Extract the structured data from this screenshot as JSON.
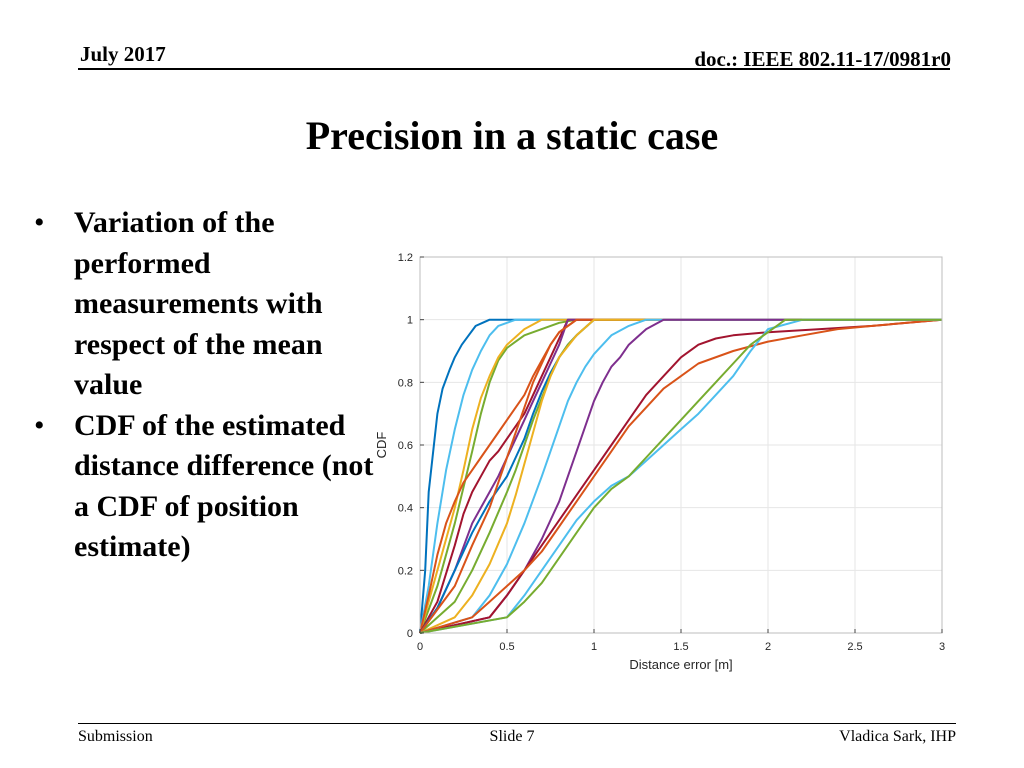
{
  "header": {
    "date": "July 2017",
    "doc": "doc.: IEEE 802.11-17/0981r0"
  },
  "title": "Precision in a static case",
  "bullets": [
    "Variation of the performed measurements with respect of the mean value",
    "CDF of the estimated distance difference (not a CDF of position estimate)"
  ],
  "footer": {
    "left": "Submission",
    "center": "Slide 7",
    "right": "Vladica Sark, IHP"
  },
  "chart_data": {
    "type": "line",
    "title": "",
    "xlabel": "Distance error [m]",
    "ylabel": "CDF",
    "xlim": [
      0,
      3
    ],
    "ylim": [
      0,
      1.2
    ],
    "xticks": [
      0,
      0.5,
      1,
      1.5,
      2,
      2.5,
      3
    ],
    "xtick_labels": [
      "0",
      "0.5",
      "1",
      "1.5",
      "2",
      "2.5",
      "3"
    ],
    "yticks": [
      0,
      0.2,
      0.4,
      0.6,
      0.8,
      1,
      1.2
    ],
    "ytick_labels": [
      "0",
      "0.2",
      "0.4",
      "0.6",
      "0.8",
      "1",
      "1.2"
    ],
    "grid": true,
    "series": [
      {
        "color": "#0072BD",
        "x": [
          0,
          0.03,
          0.05,
          0.08,
          0.1,
          0.13,
          0.17,
          0.2,
          0.24,
          0.28,
          0.32,
          0.36,
          0.4,
          0.45,
          0.5,
          3
        ],
        "y": [
          0,
          0.2,
          0.45,
          0.6,
          0.7,
          0.78,
          0.84,
          0.88,
          0.92,
          0.95,
          0.98,
          0.99,
          1.0,
          1.0,
          1.0,
          1.0
        ]
      },
      {
        "color": "#4DBEEE",
        "x": [
          0,
          0.05,
          0.1,
          0.15,
          0.2,
          0.25,
          0.3,
          0.35,
          0.4,
          0.45,
          0.5,
          0.55,
          3
        ],
        "y": [
          0,
          0.15,
          0.35,
          0.52,
          0.65,
          0.76,
          0.84,
          0.9,
          0.95,
          0.98,
          0.99,
          1.0,
          1.0
        ]
      },
      {
        "color": "#77AC30",
        "x": [
          0,
          0.1,
          0.2,
          0.3,
          0.35,
          0.4,
          0.45,
          0.5,
          0.55,
          0.6,
          0.7,
          0.8,
          0.9,
          3
        ],
        "y": [
          0,
          0.15,
          0.35,
          0.58,
          0.7,
          0.8,
          0.87,
          0.91,
          0.93,
          0.95,
          0.97,
          0.99,
          1.0,
          1.0
        ]
      },
      {
        "color": "#EDB120",
        "x": [
          0,
          0.1,
          0.2,
          0.25,
          0.3,
          0.35,
          0.4,
          0.45,
          0.5,
          0.6,
          0.7,
          3
        ],
        "y": [
          0,
          0.2,
          0.4,
          0.52,
          0.65,
          0.75,
          0.82,
          0.88,
          0.92,
          0.97,
          1.0,
          1.0
        ]
      },
      {
        "color": "#D95319",
        "x": [
          0,
          0.05,
          0.1,
          0.15,
          0.2,
          0.25,
          0.3,
          0.35,
          0.4,
          0.45,
          0.5,
          0.55,
          0.6,
          0.65,
          0.7,
          0.75,
          0.8,
          0.9,
          3
        ],
        "y": [
          0,
          0.12,
          0.25,
          0.35,
          0.42,
          0.48,
          0.52,
          0.56,
          0.6,
          0.64,
          0.68,
          0.72,
          0.76,
          0.82,
          0.87,
          0.92,
          0.96,
          1.0,
          1.0
        ]
      },
      {
        "color": "#A2142F",
        "x": [
          0,
          0.1,
          0.2,
          0.25,
          0.3,
          0.35,
          0.4,
          0.45,
          0.5,
          0.55,
          0.6,
          0.65,
          0.7,
          0.75,
          0.8,
          0.85,
          3
        ],
        "y": [
          0,
          0.1,
          0.28,
          0.38,
          0.45,
          0.5,
          0.55,
          0.58,
          0.62,
          0.66,
          0.7,
          0.76,
          0.82,
          0.88,
          0.94,
          1.0,
          1.0
        ]
      },
      {
        "color": "#7E2F8E",
        "x": [
          0,
          0.1,
          0.2,
          0.3,
          0.4,
          0.45,
          0.5,
          0.55,
          0.6,
          0.65,
          0.7,
          0.75,
          0.8,
          0.85,
          3
        ],
        "y": [
          0,
          0.08,
          0.2,
          0.35,
          0.45,
          0.5,
          0.56,
          0.62,
          0.68,
          0.74,
          0.8,
          0.86,
          0.92,
          1.0,
          1.0
        ]
      },
      {
        "color": "#0072BD",
        "x": [
          0,
          0.1,
          0.2,
          0.3,
          0.4,
          0.5,
          0.55,
          0.6,
          0.65,
          0.7,
          0.75,
          0.8,
          0.85,
          0.9,
          1.0,
          3
        ],
        "y": [
          0,
          0.08,
          0.2,
          0.32,
          0.42,
          0.5,
          0.56,
          0.62,
          0.7,
          0.77,
          0.83,
          0.88,
          0.92,
          0.95,
          1.0,
          1.0
        ]
      },
      {
        "color": "#77AC30",
        "x": [
          0,
          0.2,
          0.3,
          0.4,
          0.5,
          0.55,
          0.6,
          0.65,
          0.7,
          0.75,
          0.8,
          0.85,
          0.9,
          1.0,
          3
        ],
        "y": [
          0,
          0.1,
          0.2,
          0.32,
          0.45,
          0.52,
          0.6,
          0.68,
          0.75,
          0.82,
          0.88,
          0.92,
          0.95,
          1.0,
          1.0
        ]
      },
      {
        "color": "#D95319",
        "x": [
          0,
          0.2,
          0.3,
          0.4,
          0.45,
          0.5,
          0.55,
          0.6,
          0.65,
          0.7,
          0.75,
          0.8,
          0.9,
          3
        ],
        "y": [
          0,
          0.15,
          0.28,
          0.4,
          0.48,
          0.56,
          0.64,
          0.72,
          0.8,
          0.86,
          0.92,
          0.96,
          1.0,
          1.0
        ]
      },
      {
        "color": "#EDB120",
        "x": [
          0,
          0.2,
          0.3,
          0.4,
          0.5,
          0.55,
          0.6,
          0.65,
          0.7,
          0.75,
          0.8,
          0.9,
          1.0,
          3
        ],
        "y": [
          0,
          0.05,
          0.12,
          0.22,
          0.35,
          0.44,
          0.54,
          0.64,
          0.74,
          0.82,
          0.88,
          0.95,
          1.0,
          1.0
        ]
      },
      {
        "color": "#4DBEEE",
        "x": [
          0,
          0.3,
          0.4,
          0.5,
          0.6,
          0.7,
          0.75,
          0.8,
          0.85,
          0.9,
          0.95,
          1.0,
          1.05,
          1.1,
          1.2,
          1.3,
          3
        ],
        "y": [
          0,
          0.05,
          0.12,
          0.22,
          0.35,
          0.5,
          0.58,
          0.66,
          0.74,
          0.8,
          0.85,
          0.89,
          0.92,
          0.95,
          0.98,
          1.0,
          1.0
        ]
      },
      {
        "color": "#7E2F8E",
        "x": [
          0,
          0.4,
          0.5,
          0.6,
          0.7,
          0.8,
          0.85,
          0.9,
          0.95,
          1.0,
          1.05,
          1.1,
          1.15,
          1.2,
          1.3,
          1.4,
          3
        ],
        "y": [
          0,
          0.05,
          0.12,
          0.2,
          0.3,
          0.42,
          0.5,
          0.58,
          0.66,
          0.74,
          0.8,
          0.85,
          0.88,
          0.92,
          0.97,
          1.0,
          1.0
        ]
      },
      {
        "color": "#A2142F",
        "x": [
          0,
          0.4,
          0.5,
          0.6,
          0.7,
          0.8,
          0.9,
          1.0,
          1.1,
          1.2,
          1.3,
          1.4,
          1.5,
          1.6,
          1.7,
          1.8,
          2.0,
          2.3,
          2.6,
          3
        ],
        "y": [
          0,
          0.05,
          0.12,
          0.2,
          0.28,
          0.36,
          0.44,
          0.52,
          0.6,
          0.68,
          0.76,
          0.82,
          0.88,
          0.92,
          0.94,
          0.95,
          0.96,
          0.97,
          0.98,
          1.0
        ]
      },
      {
        "color": "#D95319",
        "x": [
          0,
          0.3,
          0.4,
          0.5,
          0.6,
          0.7,
          0.8,
          0.9,
          1.0,
          1.1,
          1.2,
          1.3,
          1.4,
          1.5,
          1.6,
          1.8,
          2.0,
          2.2,
          2.4,
          2.6,
          2.8,
          3
        ],
        "y": [
          0,
          0.05,
          0.1,
          0.15,
          0.2,
          0.26,
          0.34,
          0.42,
          0.5,
          0.58,
          0.66,
          0.72,
          0.78,
          0.82,
          0.86,
          0.9,
          0.93,
          0.95,
          0.97,
          0.98,
          0.99,
          1.0
        ]
      },
      {
        "color": "#4DBEEE",
        "x": [
          0,
          0.5,
          0.6,
          0.7,
          0.8,
          0.9,
          1.0,
          1.1,
          1.2,
          1.3,
          1.4,
          1.5,
          1.6,
          1.7,
          1.8,
          1.9,
          2.0,
          2.2,
          2.5,
          3
        ],
        "y": [
          0,
          0.05,
          0.12,
          0.2,
          0.28,
          0.36,
          0.42,
          0.47,
          0.5,
          0.55,
          0.6,
          0.65,
          0.7,
          0.76,
          0.82,
          0.9,
          0.97,
          1.0,
          1.0,
          1.0
        ]
      },
      {
        "color": "#77AC30",
        "x": [
          0,
          0.5,
          0.6,
          0.7,
          0.8,
          0.9,
          1.0,
          1.1,
          1.2,
          1.3,
          1.4,
          1.5,
          1.6,
          1.7,
          1.8,
          1.9,
          2.0,
          2.1,
          3
        ],
        "y": [
          0,
          0.05,
          0.1,
          0.16,
          0.24,
          0.32,
          0.4,
          0.46,
          0.5,
          0.56,
          0.62,
          0.68,
          0.74,
          0.8,
          0.86,
          0.92,
          0.96,
          1.0,
          1.0
        ]
      }
    ]
  }
}
